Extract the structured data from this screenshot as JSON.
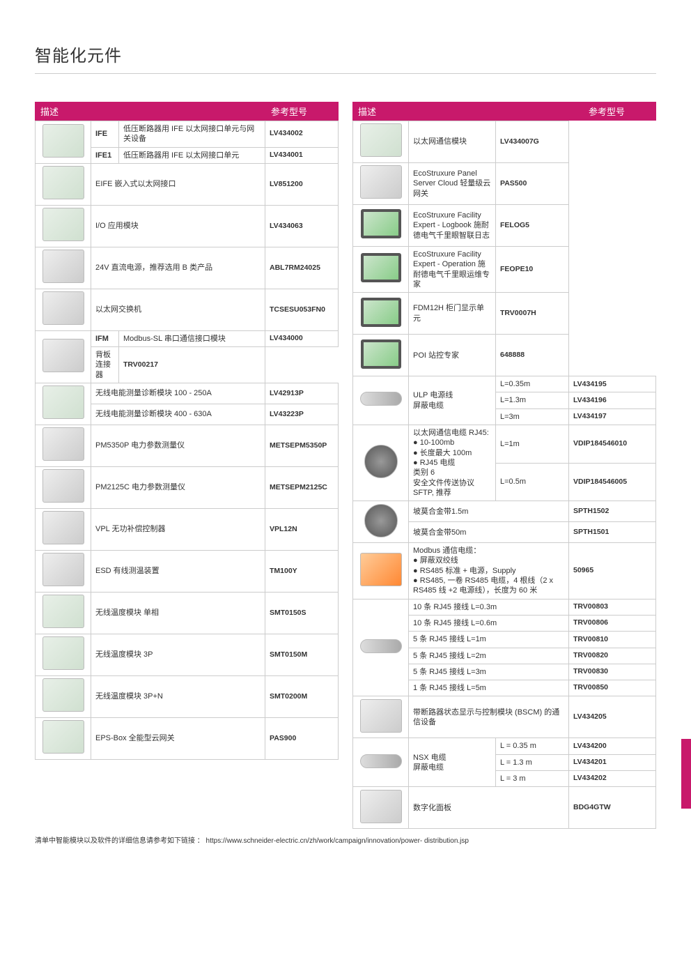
{
  "page_title": "智能化元件",
  "header_desc": "描述",
  "header_ref": "参考型号",
  "footnote": "清单中智能模块以及软件的详细信息请参考如下链接 ： https://www.schneider-electric.cn/zh/work/campaign/innovation/power- distribution.jsp",
  "colors": {
    "brand": "#c8196b",
    "border": "#cccccc",
    "text": "#333333"
  },
  "left_table": [
    {
      "img_rows": 2,
      "code": "IFE",
      "desc": "低压断路器用 IFE 以太网接口单元与网关设备",
      "ref": "LV434002",
      "img": "placeholder"
    },
    {
      "code": "IFE1",
      "desc": "低压断路器用 IFE 以太网接口单元",
      "ref": "LV434001"
    },
    {
      "img_rows": 1,
      "desc_span": 2,
      "desc": "EIFE 嵌入式以太网接口",
      "ref": "LV851200",
      "img": "placeholder"
    },
    {
      "img_rows": 1,
      "desc_span": 2,
      "desc": "I/O 应用模块",
      "ref": "LV434063",
      "img": "placeholder"
    },
    {
      "img_rows": 1,
      "desc_span": 2,
      "desc": "24V 直流电源，推荐选用 B 类产品",
      "ref": "ABL7RM24025",
      "img": "placeholder gray"
    },
    {
      "img_rows": 1,
      "desc_span": 2,
      "desc": "以太网交换机",
      "ref": "TCSESU053FN0",
      "img": "placeholder gray"
    },
    {
      "img_rows": 2,
      "code": "IFM",
      "desc": "Modbus-SL 串口通信接口模块",
      "ref": "LV434000",
      "img": "placeholder gray"
    },
    {
      "desc": "背板连接器",
      "ref": "TRV00217"
    },
    {
      "img_rows": 2,
      "desc_span": 2,
      "desc": "无线电能测量诊断模块 100 - 250A",
      "ref": "LV42913P",
      "img": "placeholder"
    },
    {
      "desc_span": 2,
      "desc": "无线电能测量诊断模块 400 - 630A",
      "ref": "LV43223P"
    },
    {
      "img_rows": 1,
      "desc_span": 2,
      "desc": "PM5350P 电力参数测量仪",
      "ref": "METSEPM5350P",
      "img": "placeholder gray"
    },
    {
      "img_rows": 1,
      "desc_span": 2,
      "desc": "PM2125C 电力参数测量仪",
      "ref": "METSEPM2125C",
      "img": "placeholder gray"
    },
    {
      "img_rows": 1,
      "desc_span": 2,
      "desc": "VPL 无功补偿控制器",
      "ref": "VPL12N",
      "img": "placeholder gray"
    },
    {
      "img_rows": 1,
      "desc_span": 2,
      "desc": "ESD 有线测温装置",
      "ref": "TM100Y",
      "img": "placeholder gray"
    },
    {
      "img_rows": 1,
      "desc_span": 2,
      "desc": "无线温度模块 单相",
      "ref": "SMT0150S",
      "img": "placeholder"
    },
    {
      "img_rows": 1,
      "desc_span": 2,
      "desc": "无线温度模块 3P",
      "ref": "SMT0150M",
      "img": "placeholder"
    },
    {
      "img_rows": 1,
      "desc_span": 2,
      "desc": "无线温度模块 3P+N",
      "ref": "SMT0200M",
      "img": "placeholder"
    },
    {
      "img_rows": 1,
      "desc_span": 2,
      "desc": "EPS-Box 全能型云网关",
      "ref": "PAS900",
      "img": "placeholder"
    }
  ],
  "right_table": [
    {
      "img_rows": 1,
      "desc": "以太网通信模块",
      "ref": "LV434007G",
      "img": "placeholder"
    },
    {
      "img_rows": 1,
      "desc": "EcoStruxure Panel Server Cloud 轻量级云网关",
      "ref": "PAS500",
      "img": "placeholder gray"
    },
    {
      "img_rows": 1,
      "desc": "EcoStruxure Facility Expert - Logbook 施耐德电气千里眼智联日志",
      "ref": "FELOG5",
      "img": "placeholder screen"
    },
    {
      "img_rows": 1,
      "desc": "EcoStruxure Facility Expert - Operation 施耐德电气千里眼运维专家",
      "ref": "FEOPE10",
      "img": "placeholder screen"
    },
    {
      "img_rows": 1,
      "desc": "FDM12H 柜门显示单元",
      "ref": "TRV0007H",
      "img": "placeholder screen"
    },
    {
      "img_rows": 1,
      "desc": "POI 站控专家",
      "ref": "648888",
      "img": "placeholder screen"
    },
    {
      "img_rows": 3,
      "desc_rows": 3,
      "desc": "ULP 电源线\n屏蔽电缆",
      "len": "L=0.35m",
      "ref": "LV434195",
      "img": "placeholder wire"
    },
    {
      "len": "L=1.3m",
      "ref": "LV434196"
    },
    {
      "len": "L=3m",
      "ref": "LV434197"
    },
    {
      "img_rows": 2,
      "desc_rows": 2,
      "desc": "以太网通信电缆 RJ45:\n● 10-100mb\n● 长度最大 100m\n● RJ45 电缆\n类别 6\n安全文件传送协议 SFTP, 推荐",
      "len": "L=1m",
      "ref": "VDIP184546010",
      "img": "placeholder cable"
    },
    {
      "len": "L=0.5m",
      "ref": "VDIP184546005"
    },
    {
      "img_rows": 2,
      "desc": "坡莫合金带1.5m",
      "ref": "SPTH1502",
      "img": "placeholder cable",
      "desc_colspan": 2
    },
    {
      "desc": "坡莫合金带50m",
      "ref": "SPTH1501",
      "desc_colspan": 2
    },
    {
      "img_rows": 1,
      "desc": "Modbus 通信电缆：\n● 屏蔽双绞线\n● RS485 标准 + 电源，Supply\n● RS485, 一卷 RS485 电缆，4 根线（2 x RS485 线 +2 电源线），长度为 60 米",
      "ref": "50965",
      "img": "placeholder orange",
      "desc_colspan": 2
    },
    {
      "img_rows": 6,
      "desc": "10 条 RJ45 接线 L=0.3m",
      "ref": "TRV00803",
      "img": "placeholder wire",
      "desc_colspan": 2
    },
    {
      "desc": "10 条 RJ45 接线 L=0.6m",
      "ref": "TRV00806",
      "desc_colspan": 2
    },
    {
      "desc": "5 条 RJ45 接线 L=1m",
      "ref": "TRV00810",
      "desc_colspan": 2
    },
    {
      "desc": "5 条 RJ45 接线 L=2m",
      "ref": "TRV00820",
      "desc_colspan": 2
    },
    {
      "desc": "5 条 RJ45 接线 L=3m",
      "ref": "TRV00830",
      "desc_colspan": 2
    },
    {
      "desc": "1 条 RJ45 接线 L=5m",
      "ref": "TRV00850",
      "desc_colspan": 2
    },
    {
      "img_rows": 1,
      "desc": "带断路器状态显示与控制模块 (BSCM) 的通信设备",
      "ref": "LV434205",
      "img": "placeholder gray",
      "desc_colspan": 2
    },
    {
      "img_rows": 3,
      "desc_rows": 3,
      "desc": "NSX 电缆\n屏蔽电缆",
      "len": "L = 0.35 m",
      "ref": "LV434200",
      "img": "placeholder wire"
    },
    {
      "len": "L = 1.3 m",
      "ref": "LV434201"
    },
    {
      "len": "L = 3 m",
      "ref": "LV434202"
    },
    {
      "img_rows": 1,
      "desc": "数字化面板",
      "ref": "BDG4GTW",
      "img": "placeholder gray",
      "desc_colspan": 2
    }
  ]
}
